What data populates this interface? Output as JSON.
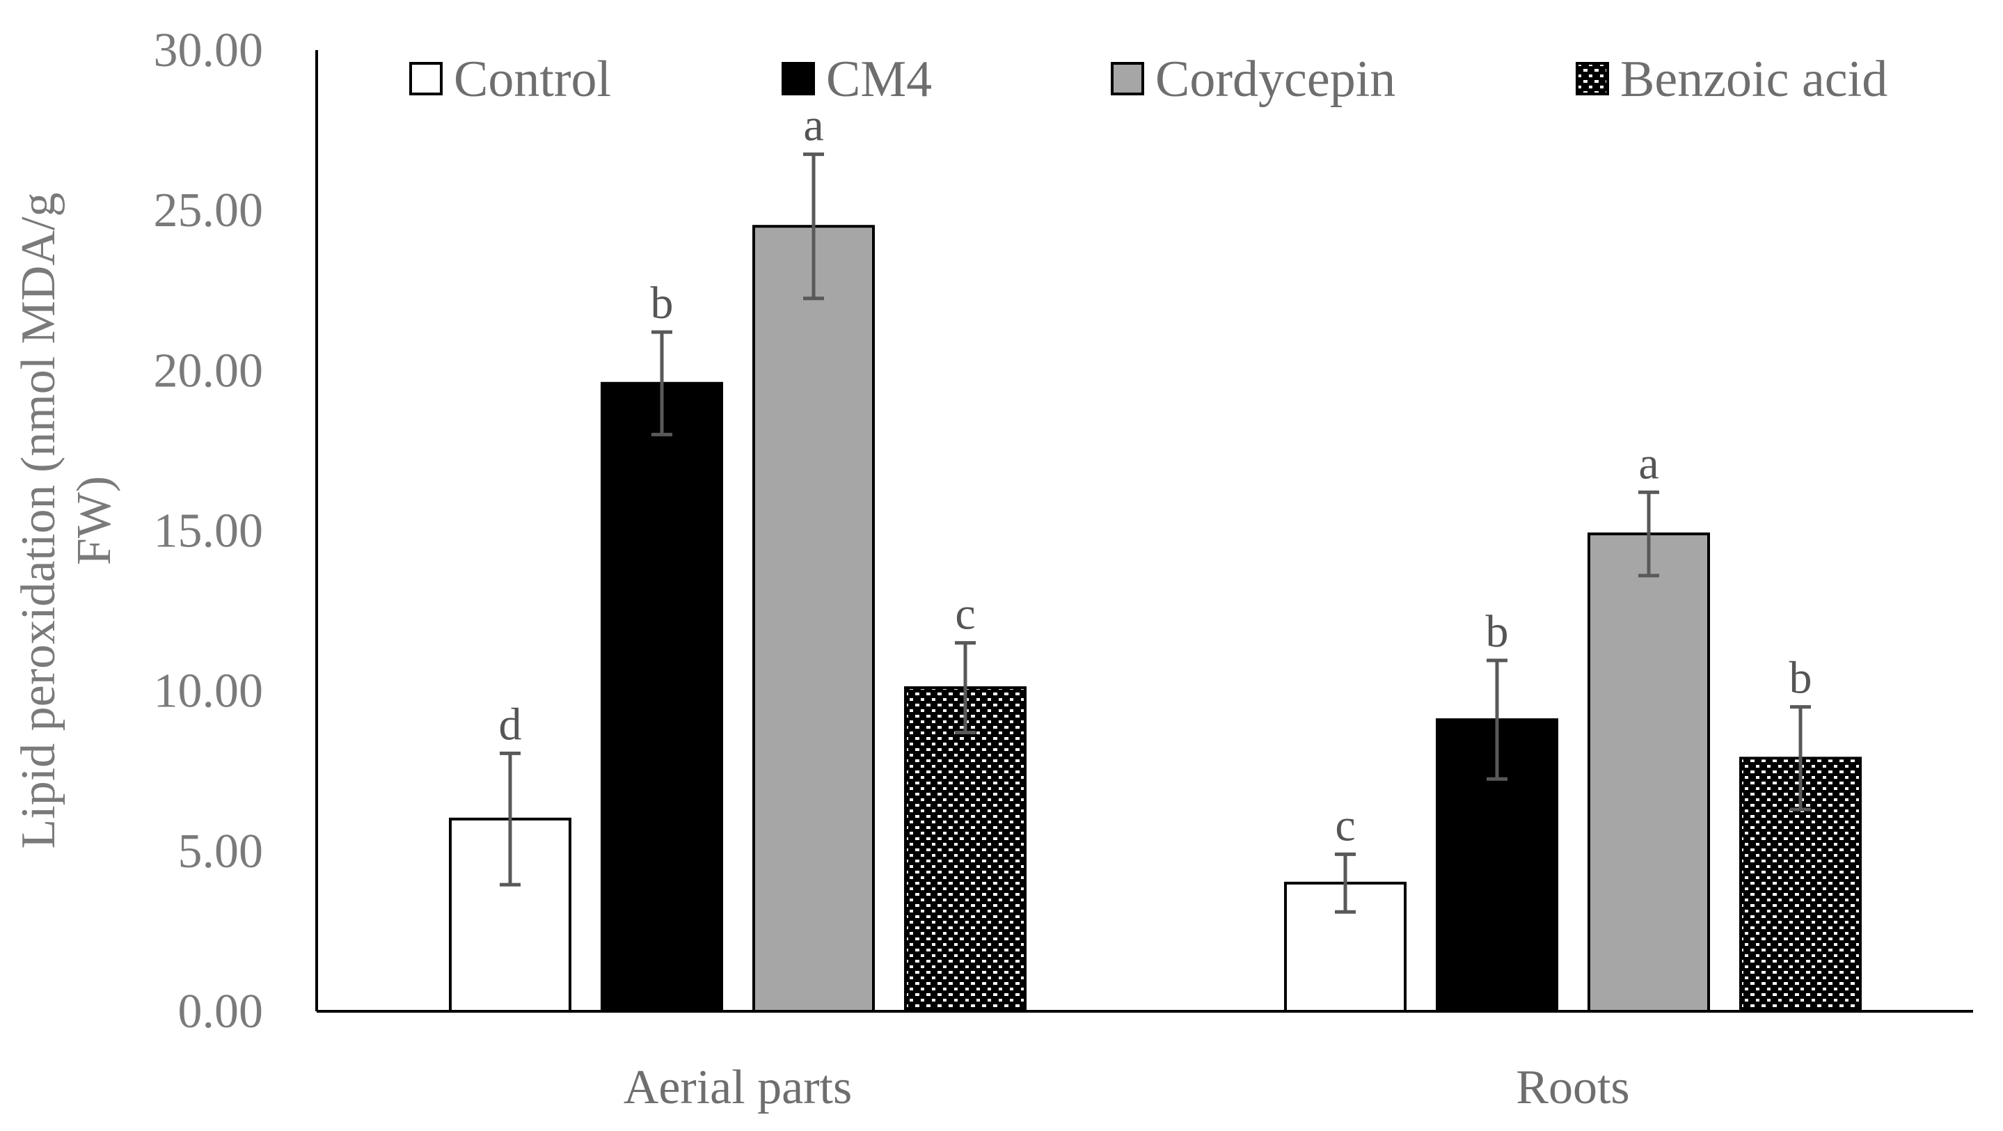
{
  "chart_data": {
    "type": "bar",
    "title": "",
    "xlabel": "",
    "ylabel_lines": [
      "Lipid peroxidation (nmol MDA/g",
      "FW)"
    ],
    "ylim": [
      0,
      30
    ],
    "yticks": [
      0,
      5,
      10,
      15,
      20,
      25,
      30
    ],
    "ytick_labels": [
      "0.00",
      "5.00",
      "10.00",
      "15.00",
      "20.00",
      "25.00",
      "30.00"
    ],
    "categories": [
      "Aerial parts",
      "Roots"
    ],
    "legend_position": "top",
    "series": [
      {
        "name": "Control",
        "pattern": "open",
        "values": [
          6.0,
          4.0
        ],
        "errors": [
          2.05,
          0.9
        ],
        "letters": [
          "d",
          "c"
        ]
      },
      {
        "name": "CM4",
        "pattern": "black",
        "values": [
          19.6,
          9.1
        ],
        "errors": [
          1.6,
          1.85
        ],
        "letters": [
          "b",
          "b"
        ]
      },
      {
        "name": "Cordycepin",
        "pattern": "gray",
        "values": [
          24.5,
          14.9
        ],
        "errors": [
          2.25,
          1.3
        ],
        "letters": [
          "a",
          "a"
        ]
      },
      {
        "name": "Benzoic acid",
        "pattern": "checker",
        "values": [
          10.1,
          7.9
        ],
        "errors": [
          1.4,
          1.6
        ],
        "letters": [
          "c",
          "b"
        ]
      }
    ],
    "colors": {
      "open": "#ffffff",
      "black": "#000000",
      "gray": "#a6a6a6",
      "checker_dark": "#000000",
      "checker_light": "#ffffff",
      "error_bar": "#595959",
      "axis": "#000000"
    }
  }
}
